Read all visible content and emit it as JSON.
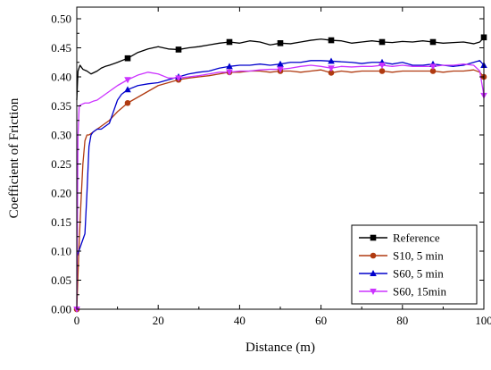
{
  "chart_data": {
    "type": "line",
    "title": "",
    "xlabel": "Distance (m)",
    "ylabel": "Coefficient of Friction",
    "xlim": [
      0,
      100
    ],
    "ylim": [
      0,
      0.52
    ],
    "x_ticks": [
      0,
      20,
      40,
      60,
      80,
      100
    ],
    "x_tick_labels": [
      "0",
      "20",
      "40",
      "60",
      "80",
      "100"
    ],
    "y_ticks": [
      0.0,
      0.05,
      0.1,
      0.15,
      0.2,
      0.25,
      0.3,
      0.35,
      0.4,
      0.45,
      0.5
    ],
    "y_tick_labels": [
      "0.00",
      "0.05",
      "0.10",
      "0.15",
      "0.20",
      "0.25",
      "0.30",
      "0.35",
      "0.40",
      "0.45",
      "0.50"
    ],
    "grid": false,
    "legend_position": "bottom-right",
    "series": [
      {
        "name": "Reference",
        "color": "#000000",
        "marker": "square",
        "x": [
          0,
          0.3,
          0.8,
          1.5,
          2.5,
          3.5,
          5,
          6,
          7,
          8,
          10,
          12.5,
          15,
          17.5,
          20,
          22.5,
          25,
          27.5,
          30,
          32.5,
          35,
          37.5,
          40,
          42.5,
          45,
          47.5,
          50,
          52.5,
          55,
          57.5,
          60,
          62.5,
          65,
          67.5,
          70,
          72.5,
          75,
          77.5,
          80,
          82.5,
          85,
          87.5,
          90,
          92.5,
          95,
          97.5,
          99,
          100
        ],
        "y": [
          0.36,
          0.41,
          0.42,
          0.413,
          0.41,
          0.405,
          0.41,
          0.415,
          0.418,
          0.42,
          0.425,
          0.432,
          0.442,
          0.448,
          0.452,
          0.448,
          0.447,
          0.45,
          0.452,
          0.455,
          0.458,
          0.46,
          0.458,
          0.462,
          0.46,
          0.455,
          0.458,
          0.457,
          0.46,
          0.463,
          0.465,
          0.463,
          0.462,
          0.458,
          0.46,
          0.462,
          0.46,
          0.459,
          0.461,
          0.46,
          0.462,
          0.46,
          0.458,
          0.459,
          0.46,
          0.457,
          0.46,
          0.468
        ],
        "marker_x": [
          12.5,
          25,
          37.5,
          50,
          62.5,
          75,
          87.5,
          100
        ],
        "marker_y": [
          0.432,
          0.447,
          0.46,
          0.458,
          0.463,
          0.46,
          0.46,
          0.468
        ]
      },
      {
        "name": "S10, 5 min",
        "color": "#b03a10",
        "marker": "circle",
        "x": [
          0,
          0.5,
          1,
          1.5,
          2,
          2.5,
          3,
          4,
          5,
          6,
          8,
          10,
          12.5,
          15,
          17.5,
          20,
          22.5,
          25,
          27.5,
          30,
          32.5,
          35,
          37.5,
          40,
          42.5,
          45,
          47.5,
          50,
          52.5,
          55,
          57.5,
          60,
          62.5,
          65,
          67.5,
          70,
          72.5,
          75,
          77.5,
          80,
          82.5,
          85,
          87.5,
          90,
          92.5,
          95,
          97.5,
          99,
          100
        ],
        "y": [
          0.0,
          0.1,
          0.18,
          0.25,
          0.29,
          0.3,
          0.3,
          0.305,
          0.31,
          0.315,
          0.325,
          0.34,
          0.355,
          0.365,
          0.375,
          0.385,
          0.39,
          0.395,
          0.398,
          0.4,
          0.402,
          0.405,
          0.408,
          0.408,
          0.41,
          0.41,
          0.408,
          0.41,
          0.41,
          0.408,
          0.41,
          0.412,
          0.407,
          0.41,
          0.408,
          0.41,
          0.41,
          0.41,
          0.408,
          0.41,
          0.41,
          0.41,
          0.41,
          0.408,
          0.41,
          0.41,
          0.412,
          0.408,
          0.4
        ],
        "marker_x": [
          0,
          12.5,
          25,
          37.5,
          50,
          62.5,
          75,
          87.5,
          100
        ],
        "marker_y": [
          0.0,
          0.355,
          0.395,
          0.408,
          0.41,
          0.407,
          0.41,
          0.41,
          0.4
        ]
      },
      {
        "name": "S60, 5 min",
        "color": "#0000cc",
        "marker": "triangle-up",
        "x": [
          0,
          0.5,
          1,
          1.5,
          2,
          2.5,
          3,
          3.5,
          4,
          5,
          6,
          7,
          8,
          9,
          10,
          11,
          12.5,
          15,
          17.5,
          20,
          22.5,
          25,
          27.5,
          30,
          32.5,
          35,
          37.5,
          40,
          42.5,
          45,
          47.5,
          50,
          52.5,
          55,
          57.5,
          60,
          62.5,
          65,
          67.5,
          70,
          72.5,
          75,
          77.5,
          80,
          82.5,
          85,
          87.5,
          90,
          92.5,
          95,
          97.5,
          99,
          100
        ],
        "y": [
          0.09,
          0.1,
          0.11,
          0.12,
          0.13,
          0.2,
          0.28,
          0.3,
          0.305,
          0.31,
          0.31,
          0.315,
          0.32,
          0.34,
          0.36,
          0.37,
          0.378,
          0.385,
          0.388,
          0.39,
          0.395,
          0.4,
          0.405,
          0.408,
          0.41,
          0.415,
          0.418,
          0.42,
          0.42,
          0.422,
          0.42,
          0.422,
          0.425,
          0.425,
          0.428,
          0.428,
          0.427,
          0.426,
          0.425,
          0.423,
          0.425,
          0.425,
          0.422,
          0.425,
          0.42,
          0.42,
          0.422,
          0.42,
          0.418,
          0.42,
          0.425,
          0.428,
          0.42
        ],
        "marker_x": [
          12.5,
          25,
          37.5,
          50,
          62.5,
          75,
          87.5,
          100
        ],
        "marker_y": [
          0.378,
          0.4,
          0.418,
          0.422,
          0.427,
          0.425,
          0.422,
          0.42
        ]
      },
      {
        "name": "S60, 15min",
        "color": "#cc33ff",
        "marker": "triangle-down",
        "x": [
          0,
          0.3,
          0.6,
          1,
          2,
          3,
          4,
          5,
          6,
          7,
          8,
          10,
          12.5,
          15,
          17.5,
          20,
          22.5,
          25,
          27.5,
          30,
          32.5,
          35,
          37.5,
          40,
          42.5,
          45,
          47.5,
          50,
          52.5,
          55,
          57.5,
          60,
          62.5,
          65,
          67.5,
          70,
          72.5,
          75,
          77.5,
          80,
          82.5,
          85,
          87.5,
          90,
          92.5,
          95,
          97.5,
          99,
          100
        ],
        "y": [
          0.0,
          0.3,
          0.35,
          0.352,
          0.355,
          0.355,
          0.358,
          0.36,
          0.365,
          0.37,
          0.375,
          0.385,
          0.395,
          0.403,
          0.408,
          0.405,
          0.398,
          0.398,
          0.4,
          0.402,
          0.405,
          0.408,
          0.408,
          0.41,
          0.41,
          0.412,
          0.413,
          0.413,
          0.415,
          0.418,
          0.42,
          0.418,
          0.415,
          0.418,
          0.417,
          0.418,
          0.418,
          0.42,
          0.418,
          0.42,
          0.418,
          0.418,
          0.418,
          0.42,
          0.42,
          0.422,
          0.42,
          0.41,
          0.368
        ],
        "marker_x": [
          0,
          12.5,
          25,
          37.5,
          50,
          62.5,
          75,
          87.5,
          100
        ],
        "marker_y": [
          0.0,
          0.395,
          0.398,
          0.408,
          0.413,
          0.415,
          0.42,
          0.418,
          0.368
        ]
      }
    ]
  }
}
